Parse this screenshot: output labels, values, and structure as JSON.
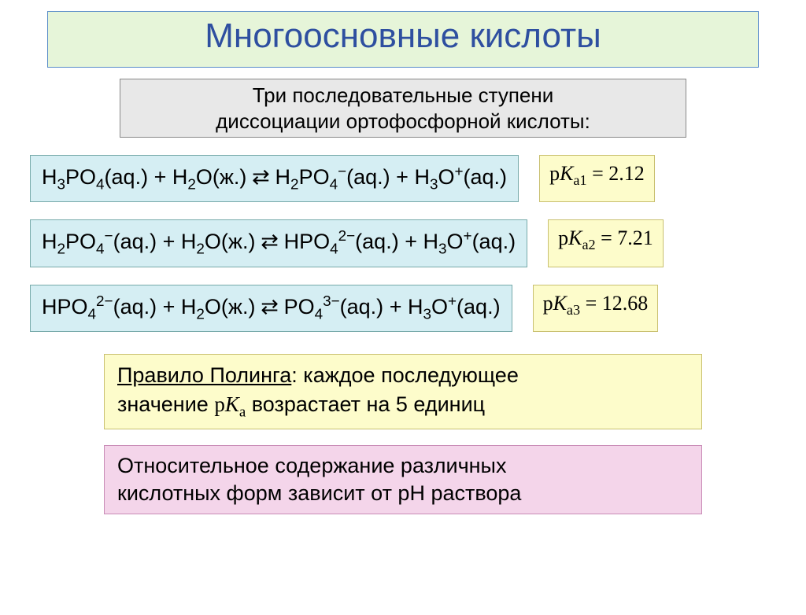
{
  "title": "Многоосновные кислоты",
  "subtitle_l1": "Три последовательные ступени",
  "subtitle_l2": "диссоциации ортофосфорной кислоты:",
  "equations": [
    {
      "lhs1": "H",
      "lhs1s": "3",
      "lhs2": "PO",
      "lhs2s": "4",
      "lhs_ph1": "(aq.)",
      "plus": " + H",
      "plus_s": "2",
      "plus2": "O(ж.)",
      "arrow": " ⇄ ",
      "rhs1": "H",
      "rhs1s": "2",
      "rhs2": "PO",
      "rhs2s": "4",
      "rhs_sup": "−",
      "rhs_ph": "(aq.)",
      "prod": " + H",
      "prod_s": "3",
      "prod2": "O",
      "prod_sup": "+",
      "prod_ph": "(aq.)",
      "pka_label": "p",
      "pka_K": "K",
      "pka_sub": "a1",
      "pka_eq": " = ",
      "pka_val": "2.12"
    },
    {
      "lhs1": "H",
      "lhs1s": "2",
      "lhs2": "PO",
      "lhs2s": "4",
      "lhs_sup": "−",
      "lhs_ph1": "(aq.)",
      "plus": " + H",
      "plus_s": "2",
      "plus2": "O(ж.)",
      "arrow": " ⇄ ",
      "rhs1": "",
      "rhs1s": "",
      "rhs2": "HPO",
      "rhs2s": "4",
      "rhs_sup": "2−",
      "rhs_ph": "(aq.)",
      "prod": " + H",
      "prod_s": "3",
      "prod2": "O",
      "prod_sup": "+",
      "prod_ph": "(aq.)",
      "pka_label": "p",
      "pka_K": "K",
      "pka_sub": "a2",
      "pka_eq": " = ",
      "pka_val": "7.21"
    },
    {
      "lhs1": "",
      "lhs1s": "",
      "lhs2": "HPO",
      "lhs2s": "4",
      "lhs_sup": "2−",
      "lhs_ph1": "(aq.)",
      "plus": " + H",
      "plus_s": "2",
      "plus2": "O(ж.)",
      "arrow": " ⇄ ",
      "rhs1": "",
      "rhs1s": "",
      "rhs2": "PO",
      "rhs2s": "4",
      "rhs_sup": "3−",
      "rhs_ph": "(aq.)",
      "prod": " + H",
      "prod_s": "3",
      "prod2": "O",
      "prod_sup": "+",
      "prod_ph": "(aq.)",
      "pka_label": "p",
      "pka_K": "K",
      "pka_sub": "a3",
      "pka_eq": " = ",
      "pka_val": "12.68"
    }
  ],
  "rule": {
    "head": "Правило Полинга",
    "tail1": ": каждое последующее",
    "l2a": "значение ",
    "pka_p": "p",
    "pka_K": "K",
    "pka_sub": "a",
    "l2b": " возрастает на 5 единиц"
  },
  "rel_l1": "Относительное содержание различных",
  "rel_l2": "кислотных форм зависит от рН раствора",
  "colors": {
    "title_bg": "#e6f5d9",
    "title_text": "#2e4fa0",
    "subtitle_bg": "#e8e8e8",
    "eq_bg": "#d5eef3",
    "pka_bg": "#fdfccb",
    "rel_bg": "#f4d5ea"
  }
}
